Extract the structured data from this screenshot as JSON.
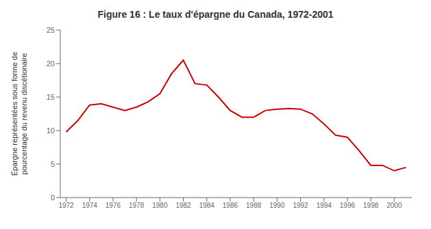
{
  "chart_data": {
    "type": "line",
    "title": "Figure 16 : Le taux d'épargne du Canada, 1972-2001",
    "ylabel": [
      "Épargne représentées sous forme de",
      "pourcentage du revenu discétionaire"
    ],
    "x": [
      1972,
      1973,
      1974,
      1975,
      1976,
      1977,
      1978,
      1979,
      1980,
      1981,
      1982,
      1983,
      1984,
      1985,
      1986,
      1987,
      1988,
      1989,
      1990,
      1991,
      1992,
      1993,
      1994,
      1995,
      1996,
      1997,
      1998,
      1999,
      2000,
      2001
    ],
    "values": [
      9.8,
      11.5,
      13.8,
      14.0,
      13.5,
      13.0,
      13.5,
      14.3,
      15.5,
      18.5,
      20.5,
      17.0,
      16.8,
      15.0,
      13.0,
      12.0,
      12.0,
      13.0,
      13.2,
      13.3,
      13.2,
      12.5,
      11.0,
      9.3,
      9.0,
      7.0,
      4.8,
      4.8,
      4.0,
      4.5
    ],
    "color": "#cc0000",
    "xlim": [
      1971.5,
      2001.5
    ],
    "xticks": [
      1972,
      1974,
      1976,
      1978,
      1980,
      1982,
      1984,
      1986,
      1988,
      1990,
      1992,
      1994,
      1996,
      1998,
      2000
    ],
    "ylim": [
      0,
      25
    ],
    "yticks": [
      0,
      5,
      10,
      15,
      20,
      25
    ],
    "grid": false
  }
}
